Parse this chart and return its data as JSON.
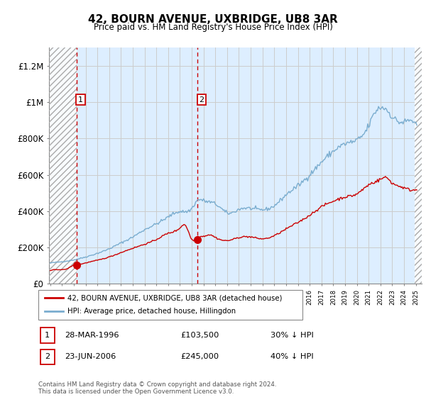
{
  "title": "42, BOURN AVENUE, UXBRIDGE, UB8 3AR",
  "subtitle": "Price paid vs. HM Land Registry's House Price Index (HPI)",
  "legend_line1": "42, BOURN AVENUE, UXBRIDGE, UB8 3AR (detached house)",
  "legend_line2": "HPI: Average price, detached house, Hillingdon",
  "footer": "Contains HM Land Registry data © Crown copyright and database right 2024.\nThis data is licensed under the Open Government Licence v3.0.",
  "sale1_date": "28-MAR-1996",
  "sale1_price": "£103,500",
  "sale1_hpi": "30% ↓ HPI",
  "sale1_year": 1996.23,
  "sale1_value": 103500,
  "sale2_date": "23-JUN-2006",
  "sale2_price": "£245,000",
  "sale2_hpi": "40% ↓ HPI",
  "sale2_year": 2006.47,
  "sale2_value": 245000,
  "red_color": "#cc0000",
  "blue_color": "#7aadcf",
  "hatch_color": "#aaaaaa",
  "grid_color": "#cccccc",
  "bg_color": "#ddeeff",
  "shade_color": "#ddeeff",
  "ylim": [
    0,
    1300000
  ],
  "yticks": [
    0,
    200000,
    400000,
    600000,
    800000,
    1000000,
    1200000
  ],
  "ytick_labels": [
    "£0",
    "£200K",
    "£400K",
    "£600K",
    "£800K",
    "£1M",
    "£1.2M"
  ],
  "xmin": 1993.9,
  "xmax": 2025.5
}
